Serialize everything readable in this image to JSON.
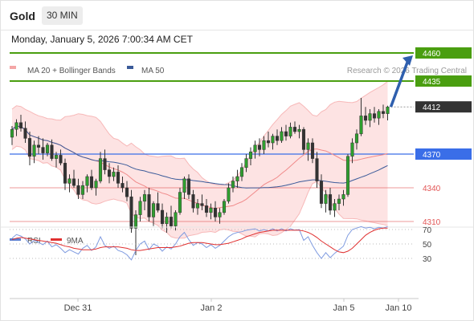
{
  "header": {
    "symbol": "Gold",
    "timeframe": "30 MIN",
    "datetime": "Monday, January 5, 2026 7:00:34 AM CET"
  },
  "legend": {
    "bb_label": "MA 20 + Bollinger Bands",
    "ma50_label": "MA 50",
    "bb_color": "#f4a6a6",
    "ma50_color": "#3a5a99"
  },
  "copyright": "Research © 2026 Trading Central",
  "rsi_legend": {
    "rsi_label": "RSI",
    "ma_label": "9MA",
    "rsi_color": "#5b7fd1",
    "ma_color": "#e03030"
  },
  "chart_data": [
    {
      "type": "candlestick",
      "x_axis": {
        "tick_labels": [
          "Dec 31",
          "Jan 2",
          "Jan 5",
          "Jan 10"
        ]
      },
      "y_range": [
        4270,
        4475
      ],
      "levels": [
        {
          "value": 4460,
          "label": "4460",
          "color": "#4a9e10",
          "kind": "resistance"
        },
        {
          "value": 4435,
          "label": "4435",
          "color": "#4a9e10",
          "kind": "resistance"
        },
        {
          "value": 4412,
          "label": "4412",
          "color": "#333333",
          "kind": "last"
        },
        {
          "value": 4370,
          "label": "4370",
          "color": "#3a6ee8",
          "kind": "pivot"
        },
        {
          "value": 4340,
          "label": "4340",
          "color": "#e25555",
          "kind": "support"
        },
        {
          "value": 4310,
          "label": "4310",
          "color": "#e25555",
          "kind": "support"
        }
      ],
      "ohlc": [
        [
          4385,
          4395,
          4378,
          4392
        ],
        [
          4392,
          4401,
          4386,
          4398
        ],
        [
          4398,
          4405,
          4390,
          4393
        ],
        [
          4393,
          4399,
          4380,
          4384
        ],
        [
          4384,
          4390,
          4360,
          4368
        ],
        [
          4368,
          4382,
          4362,
          4378
        ],
        [
          4378,
          4386,
          4370,
          4376
        ],
        [
          4376,
          4384,
          4365,
          4371
        ],
        [
          4371,
          4380,
          4368,
          4378
        ],
        [
          4378,
          4383,
          4364,
          4366
        ],
        [
          4366,
          4372,
          4358,
          4369
        ],
        [
          4369,
          4374,
          4360,
          4362
        ],
        [
          4362,
          4366,
          4338,
          4344
        ],
        [
          4344,
          4352,
          4336,
          4348
        ],
        [
          4348,
          4356,
          4340,
          4342
        ],
        [
          4342,
          4348,
          4330,
          4334
        ],
        [
          4334,
          4346,
          4330,
          4342
        ],
        [
          4342,
          4352,
          4336,
          4350
        ],
        [
          4350,
          4356,
          4338,
          4340
        ],
        [
          4340,
          4348,
          4333,
          4346
        ],
        [
          4346,
          4372,
          4344,
          4366
        ],
        [
          4366,
          4374,
          4352,
          4356
        ],
        [
          4356,
          4362,
          4344,
          4350
        ],
        [
          4350,
          4358,
          4346,
          4354
        ],
        [
          4354,
          4360,
          4340,
          4344
        ],
        [
          4344,
          4350,
          4336,
          4340
        ],
        [
          4340,
          4346,
          4328,
          4332
        ],
        [
          4332,
          4338,
          4300,
          4304
        ],
        [
          4304,
          4320,
          4280,
          4316
        ],
        [
          4316,
          4332,
          4310,
          4328
        ],
        [
          4328,
          4338,
          4320,
          4334
        ],
        [
          4334,
          4340,
          4310,
          4314
        ],
        [
          4314,
          4328,
          4306,
          4326
        ],
        [
          4326,
          4336,
          4318,
          4320
        ],
        [
          4320,
          4326,
          4304,
          4308
        ],
        [
          4308,
          4318,
          4300,
          4314
        ],
        [
          4314,
          4324,
          4304,
          4306
        ],
        [
          4306,
          4320,
          4302,
          4318
        ],
        [
          4318,
          4340,
          4316,
          4336
        ],
        [
          4336,
          4350,
          4330,
          4348
        ],
        [
          4348,
          4352,
          4330,
          4334
        ],
        [
          4334,
          4338,
          4318,
          4322
        ],
        [
          4322,
          4330,
          4316,
          4326
        ],
        [
          4326,
          4334,
          4320,
          4324
        ],
        [
          4324,
          4330,
          4314,
          4318
        ],
        [
          4318,
          4326,
          4312,
          4322
        ],
        [
          4322,
          4328,
          4310,
          4314
        ],
        [
          4314,
          4322,
          4308,
          4318
        ],
        [
          4318,
          4330,
          4316,
          4328
        ],
        [
          4328,
          4344,
          4326,
          4340
        ],
        [
          4340,
          4350,
          4336,
          4346
        ],
        [
          4346,
          4356,
          4340,
          4350
        ],
        [
          4350,
          4362,
          4346,
          4358
        ],
        [
          4358,
          4370,
          4354,
          4366
        ],
        [
          4366,
          4376,
          4360,
          4372
        ],
        [
          4372,
          4382,
          4366,
          4378
        ],
        [
          4378,
          4384,
          4368,
          4374
        ],
        [
          4374,
          4386,
          4370,
          4382
        ],
        [
          4382,
          4390,
          4376,
          4380
        ],
        [
          4380,
          4388,
          4374,
          4386
        ],
        [
          4386,
          4392,
          4378,
          4382
        ],
        [
          4382,
          4394,
          4380,
          4390
        ],
        [
          4390,
          4396,
          4382,
          4386
        ],
        [
          4386,
          4398,
          4384,
          4394
        ],
        [
          4394,
          4399,
          4388,
          4390
        ],
        [
          4390,
          4396,
          4384,
          4392
        ],
        [
          4392,
          4394,
          4370,
          4374
        ],
        [
          4374,
          4384,
          4364,
          4380
        ],
        [
          4380,
          4384,
          4362,
          4366
        ],
        [
          4366,
          4372,
          4340,
          4346
        ],
        [
          4346,
          4352,
          4322,
          4326
        ],
        [
          4326,
          4338,
          4318,
          4334
        ],
        [
          4334,
          4340,
          4316,
          4320
        ],
        [
          4320,
          4330,
          4314,
          4326
        ],
        [
          4326,
          4334,
          4320,
          4330
        ],
        [
          4330,
          4338,
          4324,
          4334
        ],
        [
          4334,
          4370,
          4332,
          4368
        ],
        [
          4368,
          4384,
          4362,
          4380
        ],
        [
          4380,
          4392,
          4374,
          4388
        ],
        [
          4388,
          4420,
          4386,
          4404
        ],
        [
          4404,
          4412,
          4396,
          4400
        ],
        [
          4400,
          4410,
          4394,
          4406
        ],
        [
          4406,
          4412,
          4398,
          4402
        ],
        [
          4402,
          4410,
          4396,
          4408
        ],
        [
          4408,
          4414,
          4402,
          4406
        ],
        [
          4406,
          4413,
          4400,
          4412
        ]
      ],
      "rsi": {
        "levels": [
          70,
          50,
          30
        ],
        "rsi": [
          58,
          63,
          61,
          57,
          50,
          55,
          52,
          49,
          54,
          46,
          49,
          44,
          38,
          42,
          39,
          36,
          44,
          48,
          41,
          46,
          60,
          48,
          44,
          47,
          41,
          39,
          35,
          28,
          41,
          50,
          54,
          42,
          50,
          47,
          40,
          46,
          43,
          50,
          60,
          66,
          56,
          48,
          52,
          50,
          45,
          49,
          44,
          48,
          54,
          60,
          64,
          66,
          67,
          69,
          70,
          71,
          68,
          70,
          68,
          71,
          68,
          71,
          68,
          71,
          69,
          70,
          55,
          60,
          48,
          38,
          30,
          38,
          31,
          37,
          42,
          47,
          62,
          70,
          72,
          74,
          72,
          73,
          71,
          73,
          72,
          74
        ],
        "ma9": [
          56,
          58,
          59,
          58,
          57,
          56,
          55,
          54,
          53,
          52,
          51,
          49,
          47,
          46,
          44,
          43,
          42,
          42,
          42,
          43,
          45,
          46,
          46,
          46,
          46,
          45,
          44,
          42,
          41,
          41,
          42,
          43,
          44,
          45,
          45,
          45,
          45,
          46,
          47,
          49,
          51,
          52,
          52,
          52,
          51,
          50,
          49,
          49,
          50,
          51,
          53,
          55,
          57,
          60,
          62,
          64,
          66,
          67,
          68,
          69,
          69,
          69,
          69,
          69,
          69,
          69,
          68,
          66,
          63,
          59,
          54,
          50,
          46,
          42,
          39,
          38,
          40,
          44,
          50,
          56,
          62,
          66,
          69,
          71,
          72,
          72
        ]
      }
    }
  ]
}
